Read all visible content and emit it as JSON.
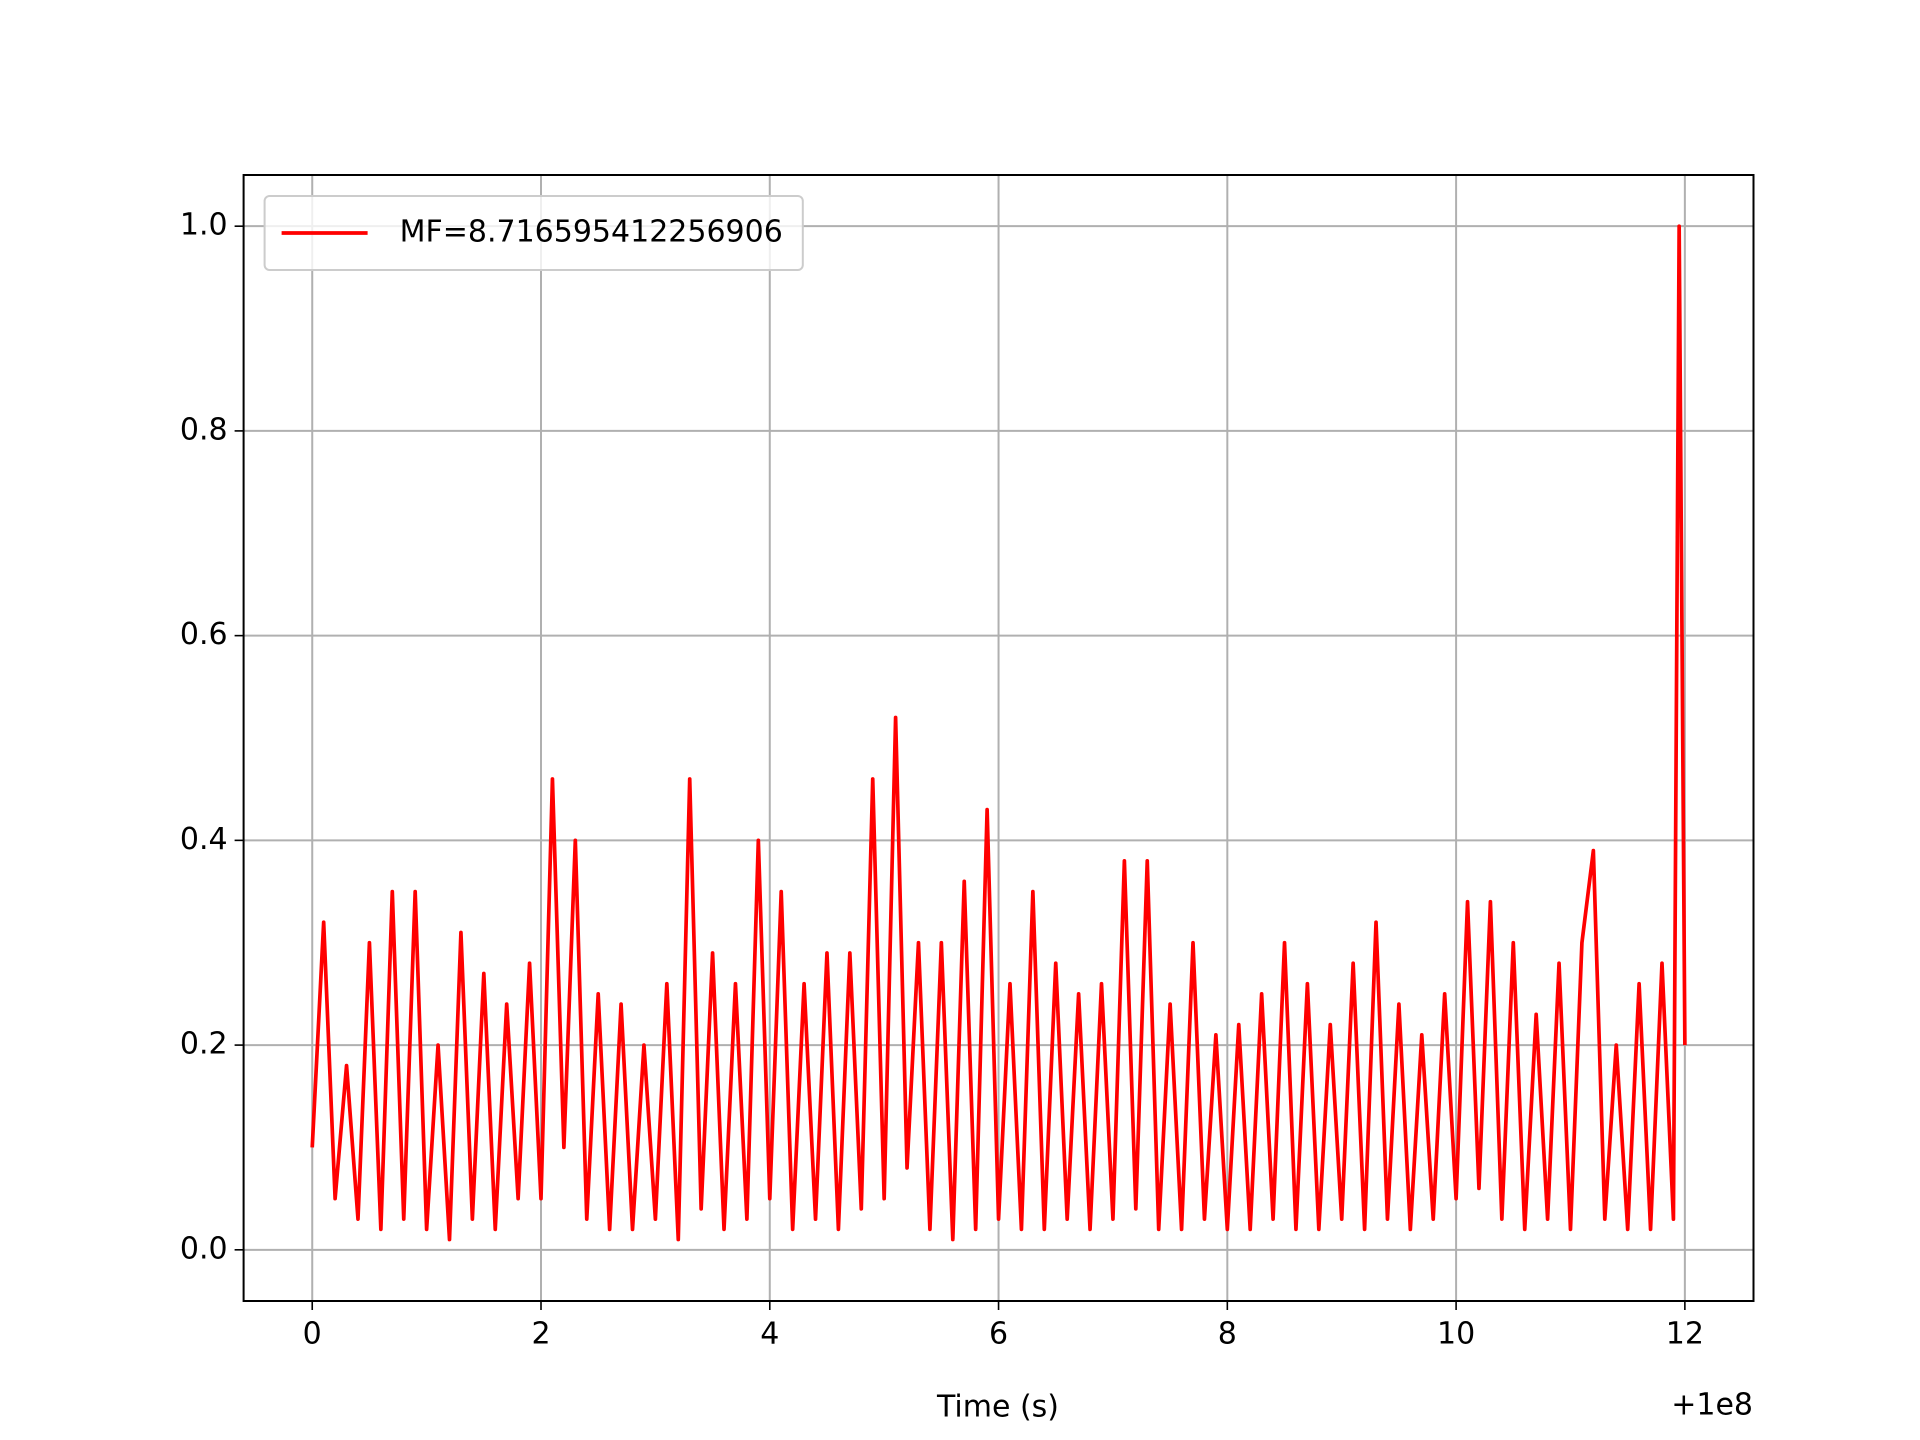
{
  "chart_data": {
    "type": "line",
    "x_label": "Time (s)",
    "x_offset_label": "+1e8",
    "x": [
      0,
      0.1,
      0.2,
      0.3,
      0.4,
      0.5,
      0.6,
      0.7,
      0.8,
      0.9,
      1.0,
      1.1,
      1.2,
      1.3,
      1.4,
      1.5,
      1.6,
      1.7,
      1.8,
      1.9,
      2.0,
      2.1,
      2.2,
      2.3,
      2.4,
      2.5,
      2.6,
      2.7,
      2.8,
      2.9,
      3.0,
      3.1,
      3.2,
      3.3,
      3.4,
      3.5,
      3.6,
      3.7,
      3.8,
      3.9,
      4.0,
      4.1,
      4.2,
      4.3,
      4.4,
      4.5,
      4.6,
      4.7,
      4.8,
      4.9,
      5.0,
      5.1,
      5.2,
      5.3,
      5.4,
      5.5,
      5.6,
      5.7,
      5.8,
      5.9,
      6.0,
      6.1,
      6.2,
      6.3,
      6.4,
      6.5,
      6.6,
      6.7,
      6.8,
      6.9,
      7.0,
      7.1,
      7.2,
      7.3,
      7.4,
      7.5,
      7.6,
      7.7,
      7.8,
      7.9,
      8.0,
      8.1,
      8.2,
      8.3,
      8.4,
      8.5,
      8.6,
      8.7,
      8.8,
      8.9,
      9.0,
      9.1,
      9.2,
      9.3,
      9.4,
      9.5,
      9.6,
      9.7,
      9.8,
      9.9,
      10.0,
      10.1,
      10.2,
      10.3,
      10.4,
      10.5,
      10.6,
      10.7,
      10.8,
      10.9,
      11.0,
      11.1,
      11.2,
      11.3,
      11.4,
      11.5,
      11.6,
      11.7,
      11.8,
      11.9,
      11.95,
      12.0
    ],
    "series": [
      {
        "name": "MF=8.716595412256906",
        "color": "#ff0000",
        "values": [
          0.1,
          0.32,
          0.05,
          0.18,
          0.03,
          0.3,
          0.02,
          0.35,
          0.03,
          0.35,
          0.02,
          0.2,
          0.01,
          0.31,
          0.03,
          0.27,
          0.02,
          0.24,
          0.05,
          0.28,
          0.05,
          0.46,
          0.1,
          0.4,
          0.03,
          0.25,
          0.02,
          0.24,
          0.02,
          0.2,
          0.03,
          0.26,
          0.01,
          0.46,
          0.04,
          0.29,
          0.02,
          0.26,
          0.03,
          0.4,
          0.05,
          0.35,
          0.02,
          0.26,
          0.03,
          0.29,
          0.02,
          0.29,
          0.04,
          0.46,
          0.05,
          0.52,
          0.08,
          0.3,
          0.02,
          0.3,
          0.01,
          0.36,
          0.02,
          0.43,
          0.03,
          0.26,
          0.02,
          0.35,
          0.02,
          0.28,
          0.03,
          0.25,
          0.02,
          0.26,
          0.03,
          0.38,
          0.04,
          0.38,
          0.02,
          0.24,
          0.02,
          0.3,
          0.03,
          0.21,
          0.02,
          0.22,
          0.02,
          0.25,
          0.03,
          0.3,
          0.02,
          0.26,
          0.02,
          0.22,
          0.03,
          0.28,
          0.02,
          0.32,
          0.03,
          0.24,
          0.02,
          0.21,
          0.03,
          0.25,
          0.05,
          0.34,
          0.06,
          0.34,
          0.03,
          0.3,
          0.02,
          0.23,
          0.03,
          0.28,
          0.02,
          0.3,
          0.39,
          0.03,
          0.2,
          0.02,
          0.26,
          0.02,
          0.28,
          0.03,
          1.0,
          0.2
        ]
      }
    ],
    "xlim": [
      -0.6,
      12.6
    ],
    "ylim": [
      -0.05,
      1.05
    ],
    "xticks": [
      0,
      2,
      4,
      6,
      8,
      10,
      12
    ],
    "yticks": [
      {
        "value": 0,
        "label": "0.0"
      },
      0.2,
      0.4,
      0.6,
      0.8,
      {
        "value": 1,
        "label": "1.0"
      }
    ],
    "grid": true,
    "legend": "upper left"
  }
}
